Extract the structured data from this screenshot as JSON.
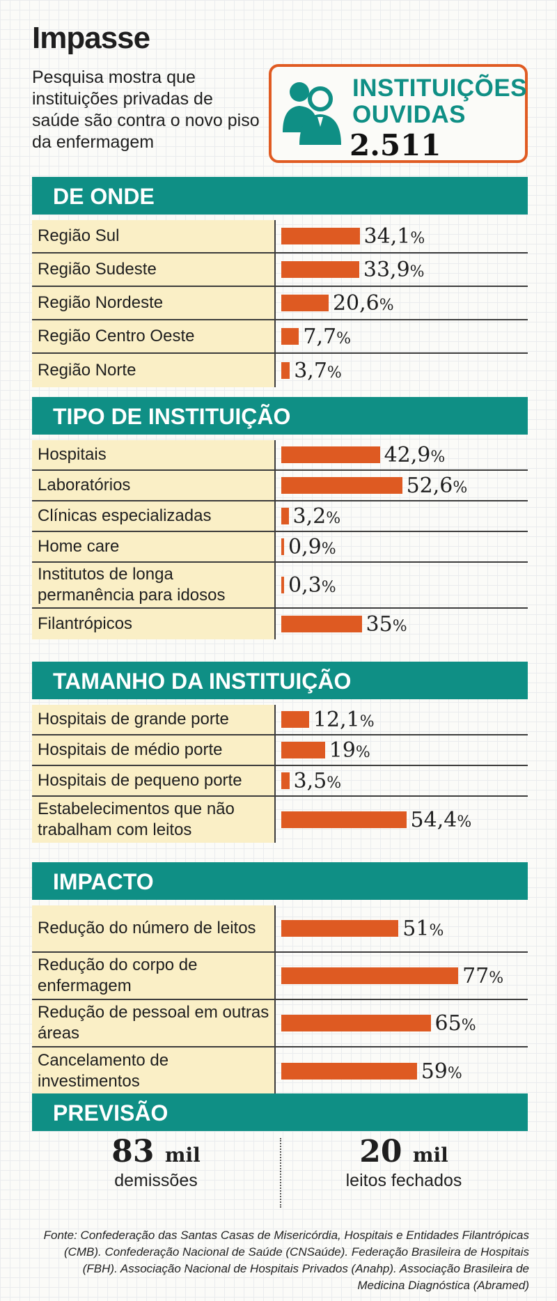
{
  "title": "Impasse",
  "subtitle": "Pesquisa mostra que instituições privadas de saúde são contra o novo piso da enfermagem",
  "badge": {
    "label_line1": "INSTITUIÇÕES",
    "label_line2": "OUVIDAS",
    "value": "2.511",
    "icon": "people-icon"
  },
  "accent_color": "#0f8f85",
  "bar_color": "#de5a22",
  "label_bg": "#faefc6",
  "chart_data": [
    {
      "type": "bar",
      "title": "DE ONDE",
      "categories": [
        "Região Sul",
        "Região Sudeste",
        "Região Nordeste",
        "Região Centro Oeste",
        "Região Norte"
      ],
      "values": [
        34.1,
        33.9,
        20.6,
        7.7,
        3.7
      ],
      "value_labels": [
        "34,1",
        "33,9",
        "20,6",
        "7,7",
        "3,7"
      ]
    },
    {
      "type": "bar",
      "title": "TIPO DE INSTITUIÇÃO",
      "categories": [
        "Hospitais",
        "Laboratórios",
        "Clínicas especializadas",
        "Home care",
        "Institutos de longa permanência para idosos",
        "Filantrópicos"
      ],
      "values": [
        42.9,
        52.6,
        3.2,
        0.9,
        0.3,
        35
      ],
      "value_labels": [
        "42,9",
        "52,6",
        "3,2",
        "0,9",
        "0,3",
        "35"
      ]
    },
    {
      "type": "bar",
      "title": "TAMANHO DA INSTITUIÇÃO",
      "categories": [
        "Hospitais de grande porte",
        "Hospitais de médio porte",
        "Hospitais de pequeno porte",
        "Estabelecimentos que não trabalham com leitos"
      ],
      "values": [
        12.1,
        19,
        3.5,
        54.4
      ],
      "value_labels": [
        "12,1",
        "19",
        "3,5",
        "54,4"
      ]
    },
    {
      "type": "bar",
      "title": "IMPACTO",
      "categories": [
        "Redução do número de leitos",
        "Redução do corpo de enfermagem",
        "Redução de pessoal em outras áreas",
        "Cancelamento de investimentos"
      ],
      "values": [
        51,
        77,
        65,
        59
      ],
      "value_labels": [
        "51",
        "77",
        "65",
        "59"
      ]
    }
  ],
  "pct_symbol": "%",
  "previsao": {
    "title": "PREVISÃO",
    "items": [
      {
        "number": "83",
        "unit": "mil",
        "label": "demissões"
      },
      {
        "number": "20",
        "unit": "mil",
        "label": "leitos fechados"
      }
    ]
  },
  "source": "Fonte: Confederação das Santas Casas de Misericórdia, Hospitais e Entidades Filantrópicas (CMB). Confederação Nacional de Saúde (CNSaúde). Federação Brasileira de Hospitais (FBH). Associação Nacional de Hospitais Privados (Anahp). Associação Brasileira de Medicina Diagnóstica (Abramed)"
}
